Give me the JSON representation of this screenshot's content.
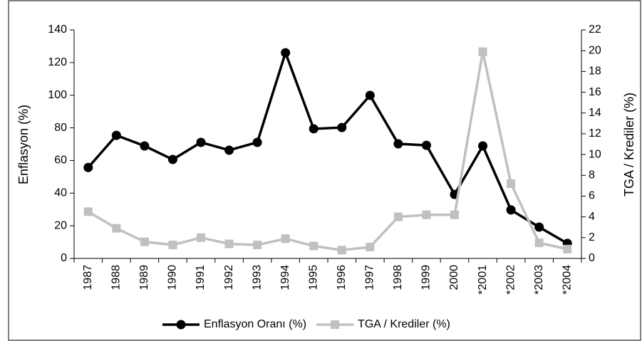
{
  "chart_data": {
    "type": "line",
    "categories": [
      "1987",
      "1988",
      "1989",
      "1990",
      "1991",
      "1992",
      "1993",
      "1994",
      "1995",
      "1996",
      "1997",
      "1998",
      "1999",
      "2000",
      "*2001",
      "*2002",
      "*2003",
      "*2004"
    ],
    "series": [
      {
        "name": "Enflasyon Oranı (%)",
        "color": "#000000",
        "marker": "circle",
        "values": [
          55.7,
          75.4,
          68.9,
          60.6,
          71.1,
          66.3,
          71.1,
          126.0,
          79.4,
          80.2,
          99.9,
          70.2,
          69.3,
          39.2,
          68.9,
          29.7,
          19.2,
          9.2
        ]
      },
      {
        "name": "TGA / Krediler (%)",
        "color": "#c0c0c0",
        "marker": "square",
        "axis": "y2",
        "values": [
          4.5,
          2.9,
          1.6,
          1.3,
          2.0,
          1.4,
          1.3,
          1.9,
          1.2,
          0.8,
          1.1,
          4.0,
          4.2,
          4.2,
          19.9,
          7.2,
          1.5,
          0.9
        ]
      }
    ],
    "ylabel": "Enflasyon (%)",
    "y2label": "TGA / Krediler (%)",
    "ylim": [
      0,
      140
    ],
    "yticks": [
      0,
      20,
      40,
      60,
      80,
      100,
      120,
      140
    ],
    "y2lim": [
      0,
      22
    ],
    "y2ticks": [
      0,
      2,
      4,
      6,
      8,
      10,
      12,
      14,
      16,
      18,
      20,
      22
    ],
    "legend": "bottom"
  }
}
